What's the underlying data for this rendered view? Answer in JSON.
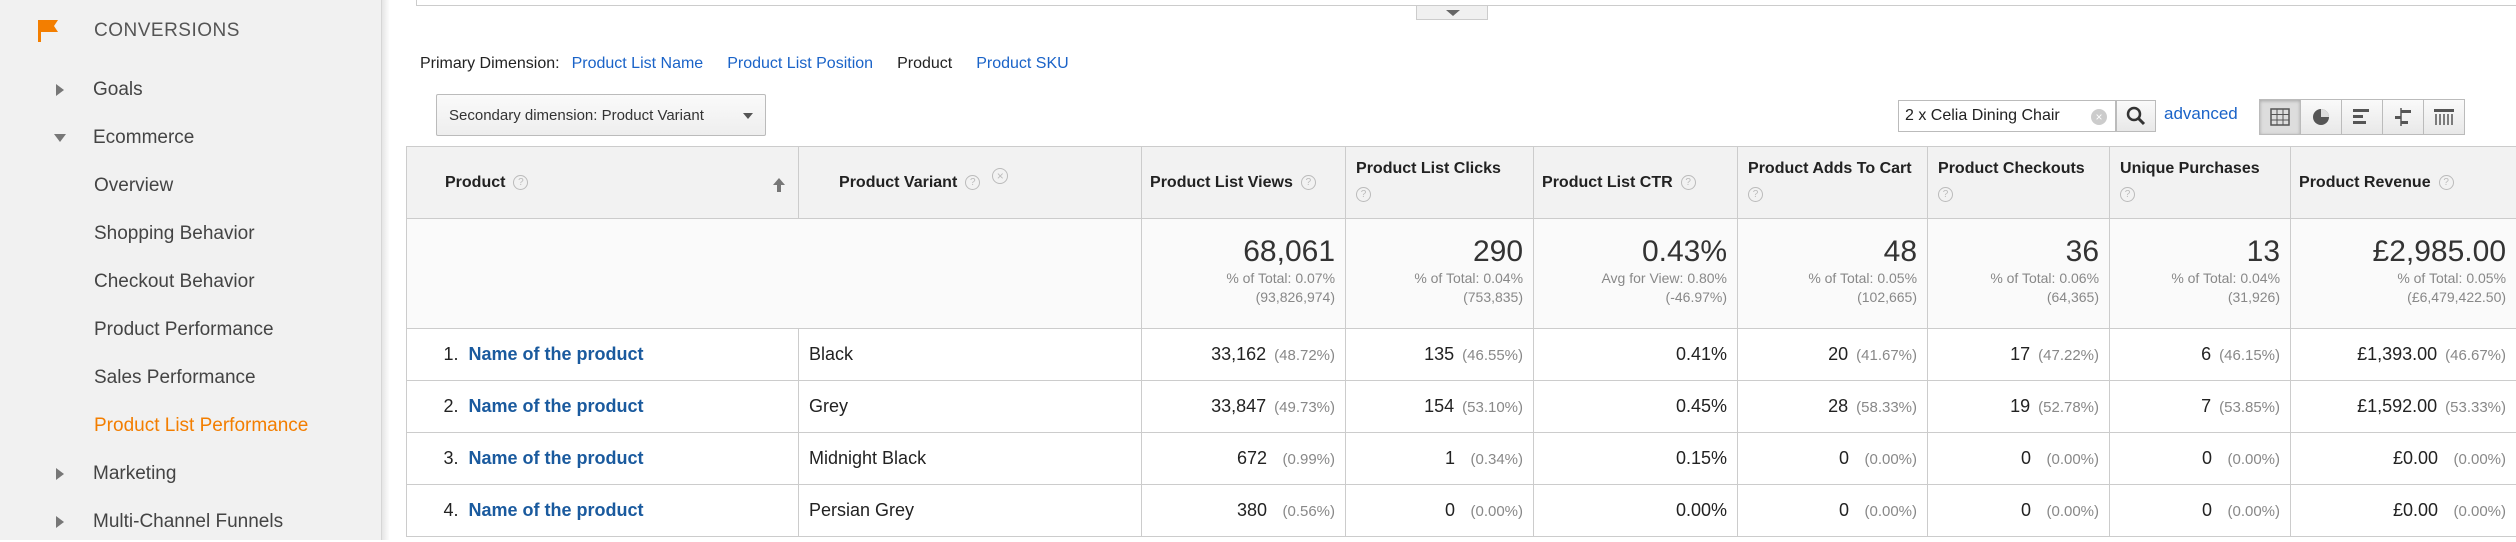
{
  "sidebar": {
    "section_title": "CONVERSIONS",
    "items": [
      {
        "label": "Goals"
      },
      {
        "label": "Ecommerce"
      },
      {
        "label": "Overview"
      },
      {
        "label": "Shopping Behavior"
      },
      {
        "label": "Checkout Behavior"
      },
      {
        "label": "Product Performance"
      },
      {
        "label": "Sales Performance"
      },
      {
        "label": "Product List Performance"
      },
      {
        "label": "Marketing"
      },
      {
        "label": "Multi-Channel Funnels"
      }
    ],
    "accent_color": "#f37e00"
  },
  "primary_dimension": {
    "label": "Primary Dimension:",
    "options": [
      "Product List Name",
      "Product List Position",
      "Product",
      "Product SKU"
    ],
    "current": "Product"
  },
  "secondary_dimension": {
    "label": "Secondary dimension: Product Variant"
  },
  "search": {
    "value": "2 x Celia Dining Chair",
    "advanced_label": "advanced"
  },
  "view_buttons": [
    "table-view-icon",
    "pie-view-icon",
    "performance-view-icon",
    "comparison-view-icon",
    "pivot-view-icon"
  ],
  "table": {
    "headers": {
      "product": "Product",
      "variant": "Product Variant",
      "list_views": "Product List Views",
      "list_clicks": "Product List Clicks",
      "list_ctr": "Product List CTR",
      "adds_to_cart": "Product Adds To Cart",
      "checkouts": "Product Checkouts",
      "unique_purchases": "Unique Purchases",
      "revenue": "Product Revenue"
    },
    "totals": {
      "list_views": {
        "value": "68,061",
        "line1": "% of Total: 0.07%",
        "line2": "(93,826,974)"
      },
      "list_clicks": {
        "value": "290",
        "line1": "% of Total: 0.04%",
        "line2": "(753,835)"
      },
      "list_ctr": {
        "value": "0.43%",
        "line1": "Avg for View: 0.80%",
        "line2": "(-46.97%)"
      },
      "adds_to_cart": {
        "value": "48",
        "line1": "% of Total: 0.05%",
        "line2": "(102,665)"
      },
      "checkouts": {
        "value": "36",
        "line1": "% of Total: 0.06%",
        "line2": "(64,365)"
      },
      "unique_purchases": {
        "value": "13",
        "line1": "% of Total: 0.04%",
        "line2": "(31,926)"
      },
      "revenue": {
        "value": "£2,985.00",
        "line1": "% of Total: 0.05%",
        "line2": "(£6,479,422.50)"
      }
    },
    "rows": [
      {
        "index": "1.",
        "product": "Name of the product",
        "variant": "Black",
        "list_views": "33,162",
        "list_views_pct": "(48.72%)",
        "list_clicks": "135",
        "list_clicks_pct": "(46.55%)",
        "list_ctr": "0.41%",
        "adds_to_cart": "20",
        "adds_to_cart_pct": "(41.67%)",
        "checkouts": "17",
        "checkouts_pct": "(47.22%)",
        "unique_purchases": "6",
        "unique_purchases_pct": "(46.15%)",
        "revenue": "£1,393.00",
        "revenue_pct": "(46.67%)"
      },
      {
        "index": "2.",
        "product": "Name of the product",
        "variant": "Grey",
        "list_views": "33,847",
        "list_views_pct": "(49.73%)",
        "list_clicks": "154",
        "list_clicks_pct": "(53.10%)",
        "list_ctr": "0.45%",
        "adds_to_cart": "28",
        "adds_to_cart_pct": "(58.33%)",
        "checkouts": "19",
        "checkouts_pct": "(52.78%)",
        "unique_purchases": "7",
        "unique_purchases_pct": "(53.85%)",
        "revenue": "£1,592.00",
        "revenue_pct": "(53.33%)"
      },
      {
        "index": "3.",
        "product": "Name of the product",
        "variant": "Midnight Black",
        "list_views": "672",
        "list_views_pct": "(0.99%)",
        "list_clicks": "1",
        "list_clicks_pct": "(0.34%)",
        "list_ctr": "0.15%",
        "adds_to_cart": "0",
        "adds_to_cart_pct": "(0.00%)",
        "checkouts": "0",
        "checkouts_pct": "(0.00%)",
        "unique_purchases": "0",
        "unique_purchases_pct": "(0.00%)",
        "revenue": "£0.00",
        "revenue_pct": "(0.00%)"
      },
      {
        "index": "4.",
        "product": "Name of the product",
        "variant": "Persian Grey",
        "list_views": "380",
        "list_views_pct": "(0.56%)",
        "list_clicks": "0",
        "list_clicks_pct": "(0.00%)",
        "list_ctr": "0.00%",
        "adds_to_cart": "0",
        "adds_to_cart_pct": "(0.00%)",
        "checkouts": "0",
        "checkouts_pct": "(0.00%)",
        "unique_purchases": "0",
        "unique_purchases_pct": "(0.00%)",
        "revenue": "£0.00",
        "revenue_pct": "(0.00%)"
      }
    ]
  }
}
